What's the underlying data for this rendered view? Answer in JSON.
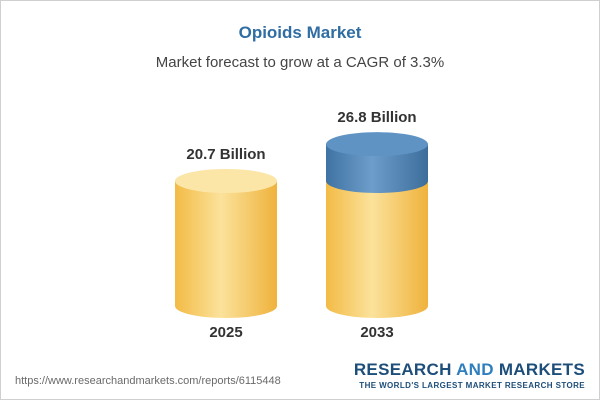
{
  "header": {
    "title": "Opioids Market",
    "subtitle": "Market forecast to grow at a CAGR of 3.3%"
  },
  "footer": {
    "url": "https://www.researchandmarkets.com/reports/6115448",
    "brand_part1": "RESEARCH",
    "brand_part2": "AND",
    "brand_part3": "MARKETS",
    "tagline": "THE WORLD'S LARGEST MARKET RESEARCH STORE"
  },
  "colors": {
    "title": "#2f6da3",
    "base_fill": "#f6c75a",
    "growth_fill": "#4f86b8",
    "brand": "#1d4e7a"
  },
  "chart_data": {
    "type": "bar",
    "title": "Opioids Market",
    "subtitle": "Market forecast to grow at a CAGR of 3.3%",
    "categories": [
      "2025",
      "2033"
    ],
    "values": [
      20.7,
      26.8
    ],
    "value_labels": [
      "20.7 Billion",
      "26.8 Billion"
    ],
    "unit": "Billion",
    "cagr": "3.3%",
    "bar_style": "cylinder",
    "grid": false,
    "legend": "none",
    "xlabel": "",
    "ylabel": ""
  }
}
